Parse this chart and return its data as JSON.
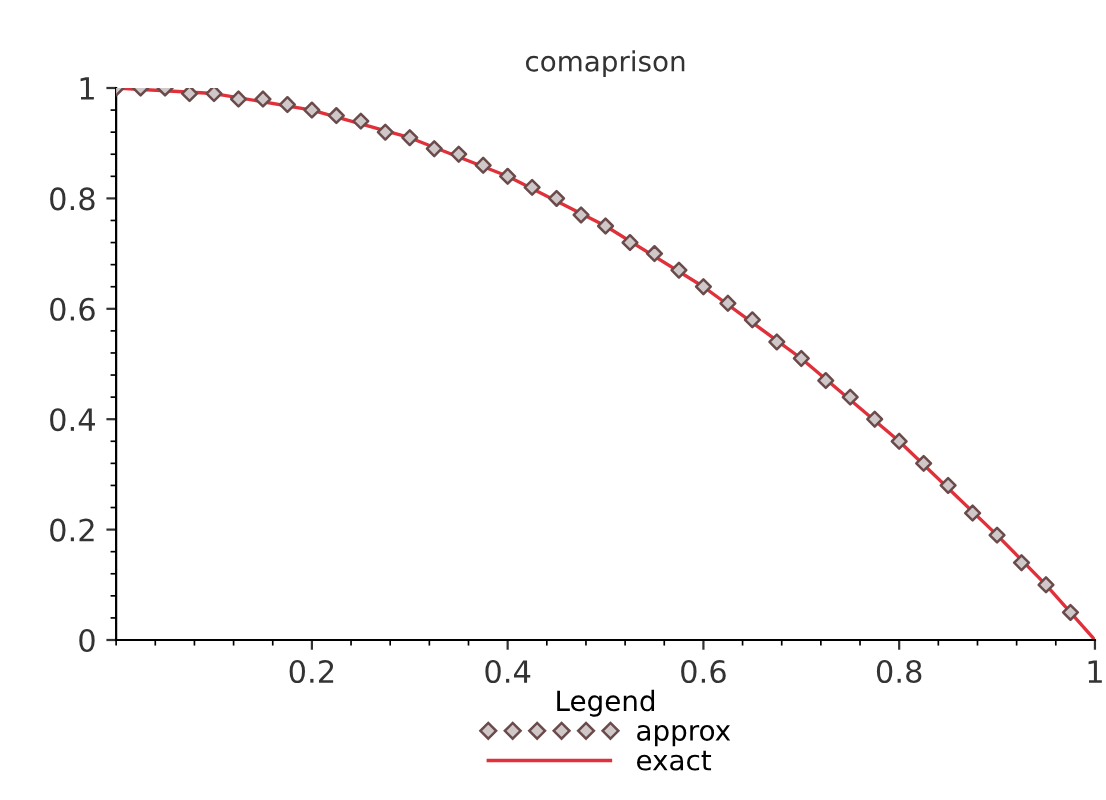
{
  "chart_data": {
    "type": "line",
    "title": "comaprison",
    "legend_title": "Legend",
    "legend": "bottom",
    "xlim": [
      0,
      1
    ],
    "ylim": [
      0,
      1
    ],
    "xticks": [
      0.2,
      0.4,
      0.6,
      0.8,
      1
    ],
    "yticks": [
      0,
      0.2,
      0.4,
      0.6,
      0.8,
      1
    ],
    "grid": false,
    "series": [
      {
        "name": "approx",
        "type": "scatter",
        "marker": "diamond",
        "color": "#6a4a4a",
        "x": [
          0,
          0.025,
          0.05,
          0.075,
          0.1,
          0.125,
          0.15,
          0.175,
          0.2,
          0.225,
          0.25,
          0.275,
          0.3,
          0.325,
          0.35,
          0.375,
          0.4,
          0.425,
          0.45,
          0.475,
          0.5,
          0.525,
          0.55,
          0.575,
          0.6,
          0.625,
          0.65,
          0.675,
          0.7,
          0.725,
          0.75,
          0.775,
          0.8,
          0.825,
          0.85,
          0.875,
          0.9,
          0.925,
          0.95,
          0.975
        ],
        "values": [
          1,
          1,
          1,
          0.99,
          0.99,
          0.98,
          0.98,
          0.97,
          0.96,
          0.95,
          0.94,
          0.92,
          0.91,
          0.89,
          0.88,
          0.86,
          0.84,
          0.82,
          0.8,
          0.77,
          0.75,
          0.72,
          0.7,
          0.67,
          0.64,
          0.61,
          0.58,
          0.54,
          0.51,
          0.47,
          0.44,
          0.4,
          0.36,
          0.32,
          0.28,
          0.23,
          0.19,
          0.14,
          0.1,
          0.05
        ]
      },
      {
        "name": "exact",
        "line_style": "solid",
        "color": "#e0303a",
        "x": [
          0,
          0.1,
          0.2,
          0.3,
          0.4,
          0.5,
          0.6,
          0.7,
          0.8,
          0.9,
          0.95,
          1
        ],
        "values": [
          1,
          0.99,
          0.96,
          0.91,
          0.84,
          0.75,
          0.64,
          0.51,
          0.36,
          0.19,
          0.1,
          0
        ]
      }
    ]
  }
}
